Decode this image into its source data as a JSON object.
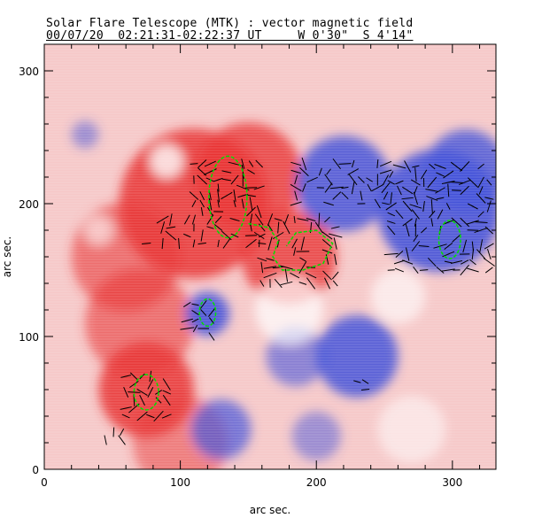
{
  "header": {
    "title": "Solar Flare Telescope (MTK) : vector magnetic field",
    "subtitle": "00/07/20  02:21:31-02:22:37 UT     W 0'30\"  S 4'14\""
  },
  "chart_data": {
    "type": "heatmap",
    "title": "Solar Flare Telescope (MTK) : vector magnetic field",
    "xlabel": "arc sec.",
    "ylabel": "arc sec.",
    "xlim": [
      0,
      332
    ],
    "ylim": [
      0,
      320
    ],
    "xticks": [
      0,
      100,
      200,
      300
    ],
    "yticks": [
      0,
      100,
      200,
      300
    ],
    "colors": {
      "positive": "#e83030",
      "negative": "#4050d8",
      "background": "#f6c8c8",
      "contour": "#00e000"
    },
    "features": [
      {
        "sign": 1,
        "x": 110,
        "y": 200,
        "r": 55,
        "a": 0.85
      },
      {
        "sign": 1,
        "x": 150,
        "y": 220,
        "r": 40,
        "a": 0.8
      },
      {
        "sign": 1,
        "x": 180,
        "y": 160,
        "r": 35,
        "a": 0.8
      },
      {
        "sign": 1,
        "x": 75,
        "y": 60,
        "r": 35,
        "a": 0.85
      },
      {
        "sign": 1,
        "x": 70,
        "y": 110,
        "r": 40,
        "a": 0.6
      },
      {
        "sign": 1,
        "x": 60,
        "y": 160,
        "r": 40,
        "a": 0.6
      },
      {
        "sign": 1,
        "x": 100,
        "y": 20,
        "r": 35,
        "a": 0.5
      },
      {
        "sign": -1,
        "x": 220,
        "y": 215,
        "r": 35,
        "a": 0.85
      },
      {
        "sign": -1,
        "x": 290,
        "y": 195,
        "r": 45,
        "a": 0.9
      },
      {
        "sign": -1,
        "x": 310,
        "y": 225,
        "r": 30,
        "a": 0.8
      },
      {
        "sign": -1,
        "x": 120,
        "y": 117,
        "r": 16,
        "a": 0.9
      },
      {
        "sign": -1,
        "x": 230,
        "y": 85,
        "r": 30,
        "a": 0.85
      },
      {
        "sign": -1,
        "x": 185,
        "y": 85,
        "r": 22,
        "a": 0.6
      },
      {
        "sign": -1,
        "x": 130,
        "y": 30,
        "r": 22,
        "a": 0.7
      },
      {
        "sign": -1,
        "x": 200,
        "y": 25,
        "r": 18,
        "a": 0.5
      },
      {
        "sign": -1,
        "x": 30,
        "y": 252,
        "r": 10,
        "a": 0.5
      },
      {
        "sign": 0,
        "x": 90,
        "y": 232,
        "r": 12,
        "a": 0.8
      },
      {
        "sign": 0,
        "x": 180,
        "y": 120,
        "r": 25,
        "a": 0.7
      },
      {
        "sign": 0,
        "x": 260,
        "y": 130,
        "r": 20,
        "a": 0.6
      },
      {
        "sign": 0,
        "x": 40,
        "y": 180,
        "r": 10,
        "a": 0.6
      },
      {
        "sign": 0,
        "x": 270,
        "y": 30,
        "r": 25,
        "a": 0.5
      }
    ],
    "vector_regions": [
      {
        "x": [
          110,
          160
        ],
        "y": [
          170,
          235
        ]
      },
      {
        "x": [
          160,
          215
        ],
        "y": [
          140,
          190
        ]
      },
      {
        "x": [
          185,
          255
        ],
        "y": [
          200,
          230
        ]
      },
      {
        "x": [
          255,
          330
        ],
        "y": [
          150,
          230
        ]
      },
      {
        "x": [
          75,
          110
        ],
        "y": [
          170,
          190
        ]
      },
      {
        "x": [
          60,
          90
        ],
        "y": [
          40,
          70
        ]
      },
      {
        "x": [
          45,
          60
        ],
        "y": [
          10,
          30
        ]
      },
      {
        "x": [
          230,
          250
        ],
        "y": [
          60,
          70
        ]
      },
      {
        "x": [
          105,
          125
        ],
        "y": [
          100,
          125
        ]
      }
    ],
    "contours": [
      {
        "type": "ellipse",
        "x": 135,
        "y": 205,
        "rx": 14,
        "ry": 30
      },
      {
        "type": "ellipse",
        "x": 75,
        "y": 58,
        "rx": 9,
        "ry": 13
      },
      {
        "type": "ellipse",
        "x": 120,
        "y": 118,
        "rx": 6,
        "ry": 10
      },
      {
        "type": "ellipse",
        "x": 298,
        "y": 173,
        "rx": 8,
        "ry": 14
      },
      {
        "type": "line",
        "points": [
          [
            150,
            185
          ],
          [
            165,
            182
          ],
          [
            172,
            172
          ],
          [
            168,
            160
          ],
          [
            175,
            150
          ],
          [
            190,
            150
          ],
          [
            205,
            155
          ],
          [
            212,
            170
          ],
          [
            200,
            180
          ],
          [
            185,
            178
          ],
          [
            178,
            168
          ]
        ]
      }
    ]
  }
}
